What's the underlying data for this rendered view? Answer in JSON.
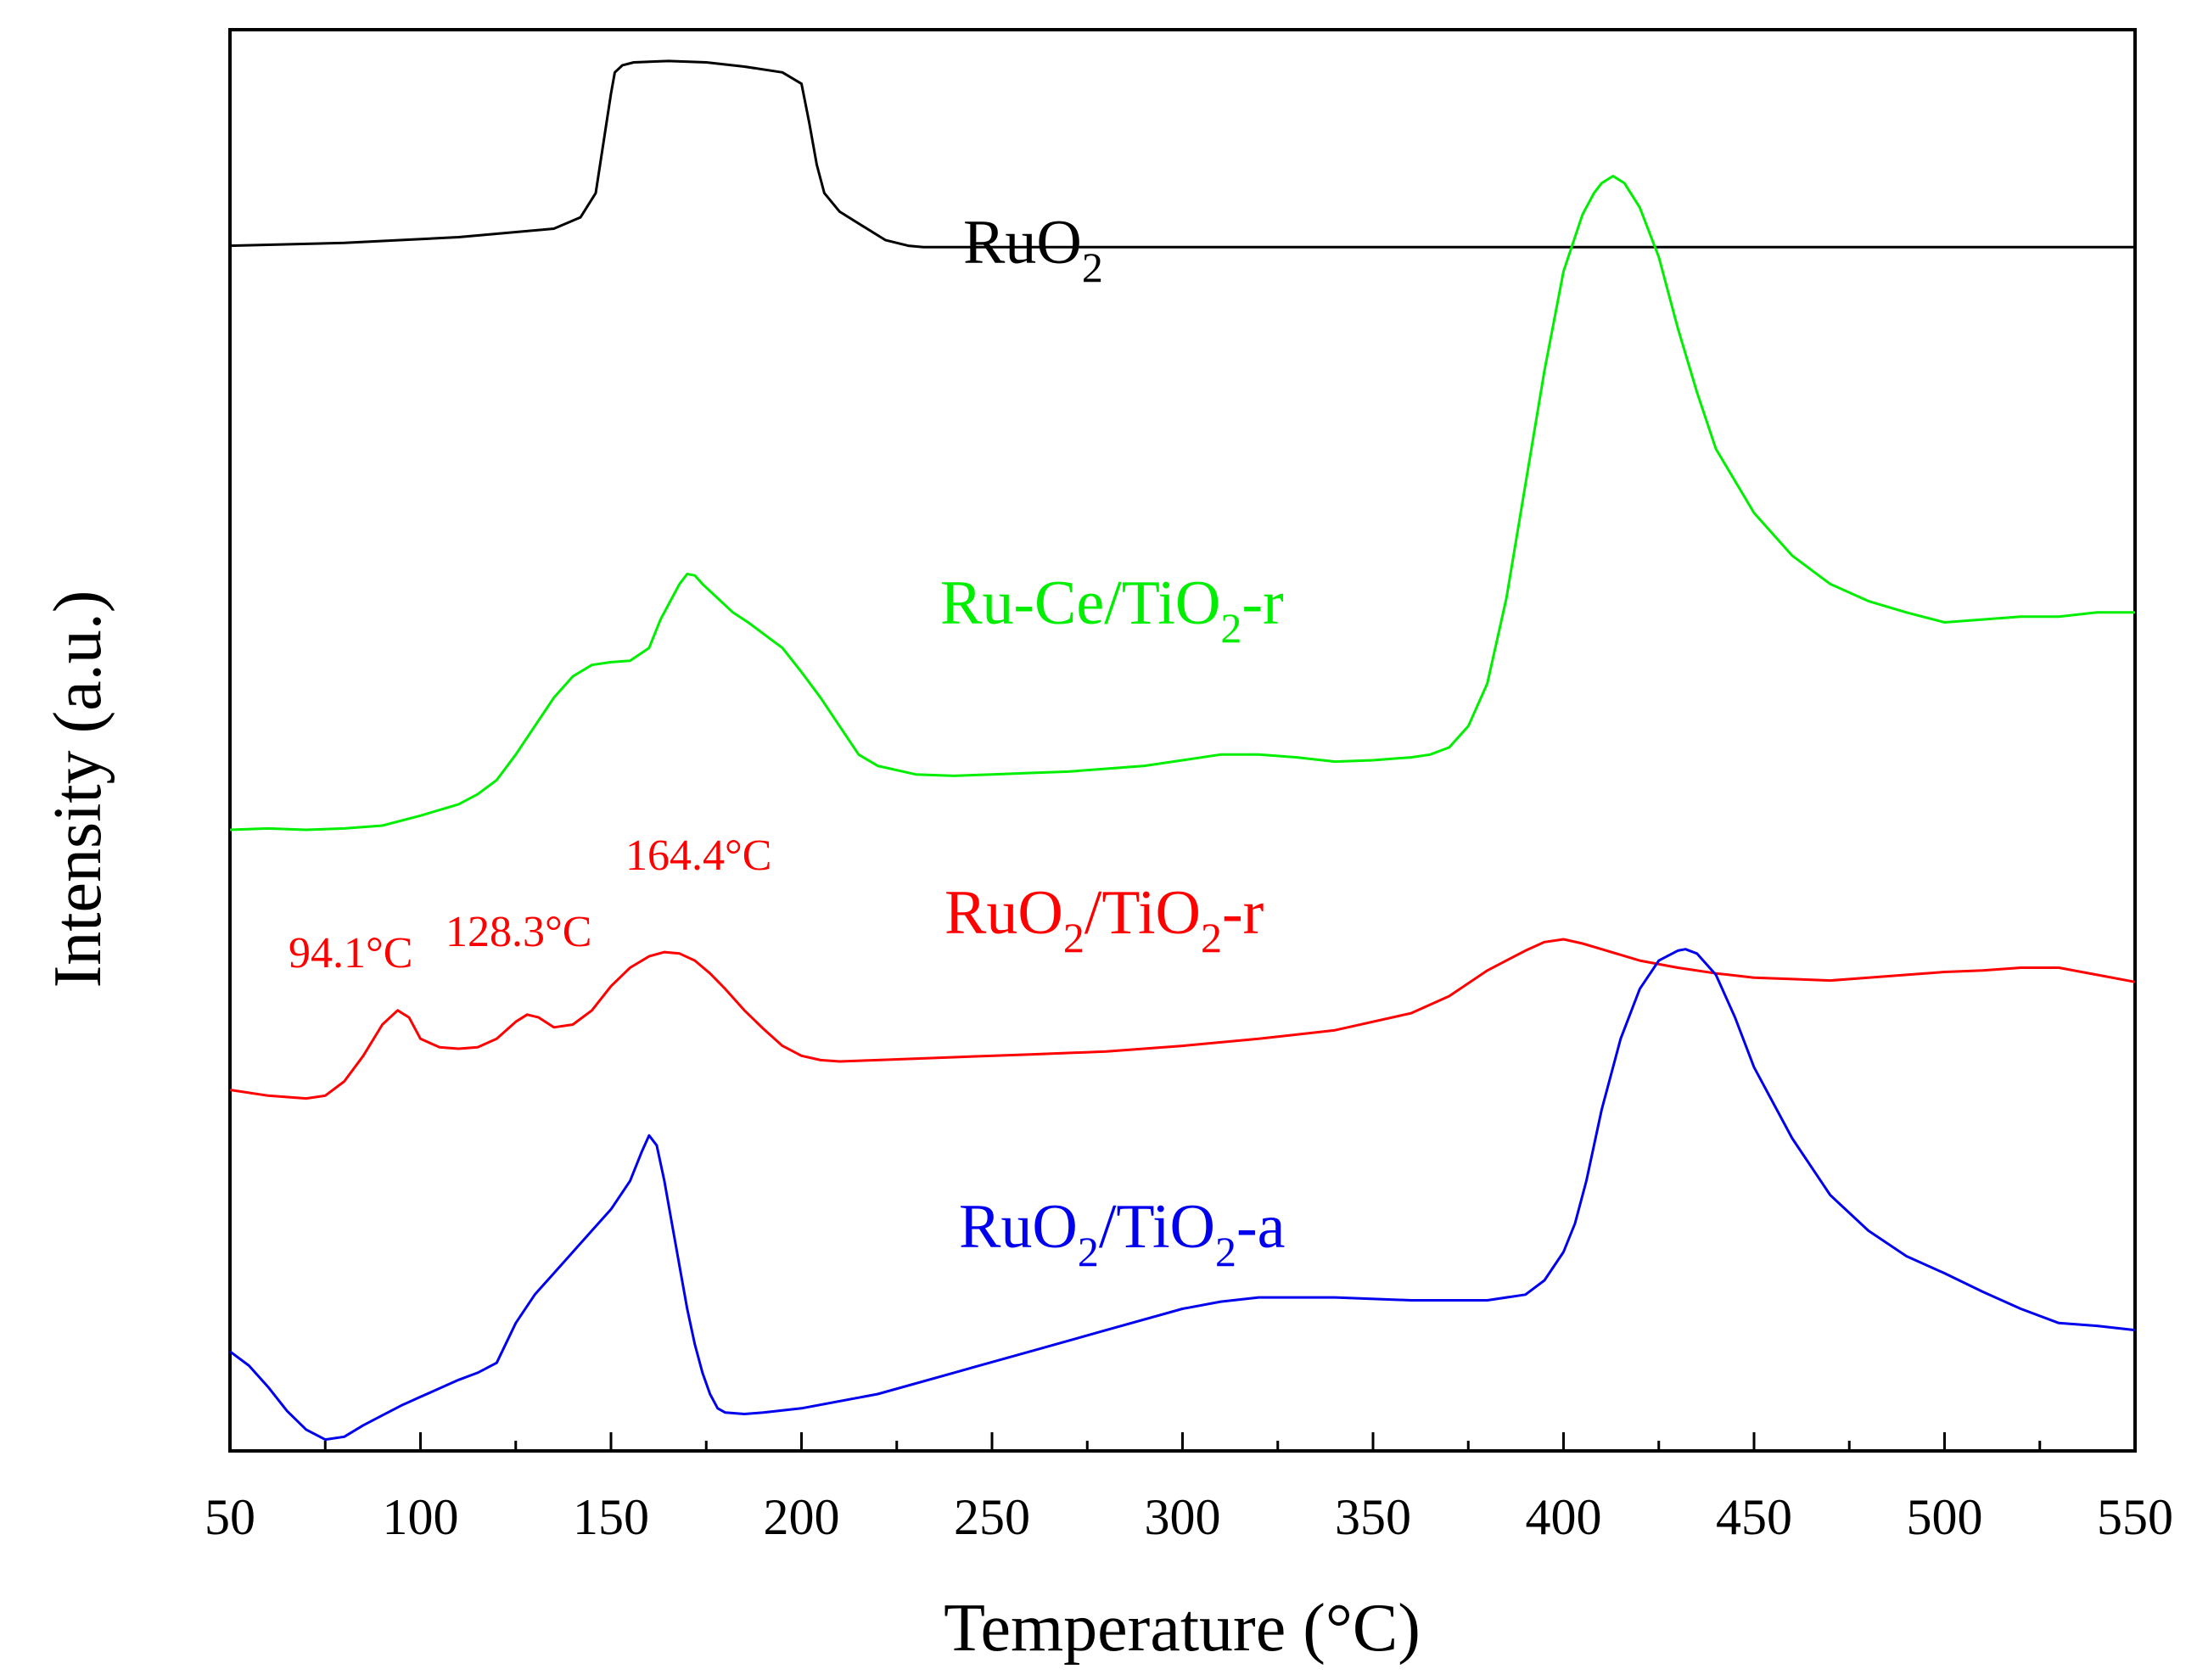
{
  "chart_data": {
    "type": "line",
    "title": "",
    "xlabel": "Temperature (°C)",
    "ylabel": "Intensity (a.u.)",
    "xlim": [
      50,
      550
    ],
    "ylim": [
      0,
      1
    ],
    "y_ticks_labeled": false,
    "grid": false,
    "legend": "inline labels",
    "x_ticks": [
      "50",
      "100",
      "150",
      "200",
      "250",
      "300",
      "350",
      "400",
      "450",
      "500",
      "550"
    ],
    "series": [
      {
        "name": "RuO2",
        "label_main": "RuO",
        "label_parts": [
          [
            "RuO",
            false
          ],
          [
            "2",
            true
          ]
        ],
        "color": "#000000",
        "x": [
          50,
          80,
          110,
          135,
          142,
          146,
          148,
          150,
          151,
          153,
          156,
          165,
          175,
          185,
          195,
          200,
          202,
          204,
          206,
          210,
          216,
          222,
          228,
          232,
          240,
          300,
          350,
          400,
          450,
          500,
          550
        ],
        "y": [
          0.848,
          0.85,
          0.854,
          0.86,
          0.868,
          0.885,
          0.92,
          0.955,
          0.97,
          0.975,
          0.977,
          0.978,
          0.977,
          0.974,
          0.97,
          0.962,
          0.935,
          0.905,
          0.885,
          0.872,
          0.862,
          0.852,
          0.848,
          0.847,
          0.847,
          0.847,
          0.847,
          0.847,
          0.847,
          0.847,
          0.847
        ]
      },
      {
        "name": "Ru-Ce/TiO2-r",
        "label_parts": [
          [
            "Ru-Ce/TiO",
            false
          ],
          [
            "2",
            true
          ],
          [
            "-r",
            false
          ]
        ],
        "color": "#00ee00",
        "x": [
          50,
          60,
          70,
          80,
          90,
          100,
          110,
          115,
          120,
          125,
          130,
          135,
          140,
          145,
          150,
          155,
          160,
          163,
          166,
          168,
          170,
          172,
          174,
          178,
          182,
          186,
          190,
          195,
          200,
          205,
          210,
          215,
          220,
          230,
          240,
          250,
          260,
          270,
          280,
          290,
          300,
          310,
          320,
          330,
          340,
          350,
          360,
          365,
          370,
          375,
          380,
          385,
          390,
          395,
          400,
          405,
          408,
          410,
          413,
          416,
          420,
          425,
          430,
          435,
          440,
          450,
          460,
          470,
          480,
          490,
          500,
          510,
          520,
          530,
          540,
          550
        ],
        "y": [
          0.437,
          0.438,
          0.437,
          0.438,
          0.44,
          0.447,
          0.455,
          0.462,
          0.472,
          0.49,
          0.51,
          0.53,
          0.545,
          0.553,
          0.555,
          0.556,
          0.565,
          0.585,
          0.6,
          0.61,
          0.617,
          0.616,
          0.61,
          0.6,
          0.59,
          0.583,
          0.575,
          0.565,
          0.548,
          0.53,
          0.51,
          0.49,
          0.482,
          0.476,
          0.475,
          0.476,
          0.477,
          0.478,
          0.48,
          0.482,
          0.486,
          0.49,
          0.49,
          0.488,
          0.485,
          0.486,
          0.488,
          0.49,
          0.495,
          0.51,
          0.54,
          0.6,
          0.68,
          0.76,
          0.83,
          0.87,
          0.885,
          0.892,
          0.897,
          0.892,
          0.875,
          0.84,
          0.79,
          0.745,
          0.705,
          0.66,
          0.63,
          0.61,
          0.598,
          0.59,
          0.583,
          0.585,
          0.587,
          0.587,
          0.59,
          0.59
        ]
      },
      {
        "name": "RuO2/TiO2-r",
        "label_parts": [
          [
            "RuO",
            false
          ],
          [
            "2",
            true
          ],
          [
            "/TiO",
            false
          ],
          [
            "2",
            true
          ],
          [
            "-r",
            false
          ]
        ],
        "color": "#ff0000",
        "x": [
          50,
          60,
          70,
          75,
          80,
          85,
          90,
          94,
          97,
          100,
          105,
          110,
          115,
          120,
          125,
          128,
          131,
          135,
          140,
          145,
          150,
          155,
          160,
          164,
          168,
          172,
          176,
          180,
          185,
          190,
          195,
          200,
          205,
          210,
          220,
          240,
          260,
          280,
          300,
          320,
          340,
          360,
          370,
          380,
          390,
          395,
          400,
          405,
          410,
          420,
          430,
          440,
          450,
          460,
          470,
          480,
          490,
          500,
          510,
          520,
          530,
          540,
          550
        ],
        "y": [
          0.254,
          0.25,
          0.248,
          0.25,
          0.26,
          0.278,
          0.3,
          0.31,
          0.305,
          0.29,
          0.284,
          0.283,
          0.284,
          0.29,
          0.302,
          0.307,
          0.305,
          0.298,
          0.3,
          0.31,
          0.327,
          0.34,
          0.348,
          0.351,
          0.35,
          0.345,
          0.336,
          0.325,
          0.31,
          0.297,
          0.285,
          0.278,
          0.275,
          0.274,
          0.275,
          0.277,
          0.279,
          0.281,
          0.285,
          0.29,
          0.296,
          0.308,
          0.32,
          0.338,
          0.352,
          0.358,
          0.36,
          0.357,
          0.353,
          0.345,
          0.34,
          0.336,
          0.333,
          0.332,
          0.331,
          0.333,
          0.335,
          0.337,
          0.338,
          0.34,
          0.34,
          0.335,
          0.33
        ]
      },
      {
        "name": "RuO2/TiO2-a",
        "label_parts": [
          [
            "RuO",
            false
          ],
          [
            "2",
            true
          ],
          [
            "/TiO",
            false
          ],
          [
            "2",
            true
          ],
          [
            "-a",
            false
          ]
        ],
        "color": "#0000ee",
        "x": [
          50,
          55,
          60,
          65,
          70,
          75,
          80,
          85,
          90,
          95,
          100,
          105,
          110,
          115,
          120,
          125,
          130,
          135,
          140,
          145,
          150,
          155,
          158,
          160,
          162,
          164,
          166,
          168,
          170,
          172,
          174,
          176,
          178,
          180,
          185,
          190,
          200,
          220,
          240,
          260,
          280,
          300,
          310,
          320,
          330,
          340,
          360,
          380,
          390,
          395,
          400,
          403,
          406,
          410,
          415,
          420,
          425,
          430,
          432,
          435,
          440,
          445,
          450,
          460,
          470,
          480,
          490,
          500,
          510,
          520,
          530,
          540,
          550
        ],
        "y": [
          0.07,
          0.06,
          0.045,
          0.028,
          0.015,
          0.008,
          0.01,
          0.018,
          0.025,
          0.032,
          0.038,
          0.044,
          0.05,
          0.055,
          0.062,
          0.09,
          0.11,
          0.125,
          0.14,
          0.155,
          0.17,
          0.19,
          0.21,
          0.222,
          0.215,
          0.19,
          0.16,
          0.13,
          0.1,
          0.075,
          0.055,
          0.04,
          0.03,
          0.027,
          0.026,
          0.027,
          0.03,
          0.04,
          0.055,
          0.07,
          0.085,
          0.1,
          0.105,
          0.108,
          0.108,
          0.108,
          0.106,
          0.106,
          0.11,
          0.12,
          0.14,
          0.16,
          0.19,
          0.24,
          0.29,
          0.325,
          0.345,
          0.352,
          0.353,
          0.35,
          0.335,
          0.305,
          0.27,
          0.22,
          0.18,
          0.155,
          0.137,
          0.125,
          0.112,
          0.1,
          0.09,
          0.088,
          0.085
        ]
      }
    ],
    "annotations": [
      {
        "text": "94.1°C",
        "x": 94.1,
        "color": "#ff0000"
      },
      {
        "text": "128.3°C",
        "x": 128.3,
        "color": "#ff0000"
      },
      {
        "text": "164.4°C",
        "x": 164.4,
        "color": "#ff0000"
      }
    ]
  }
}
